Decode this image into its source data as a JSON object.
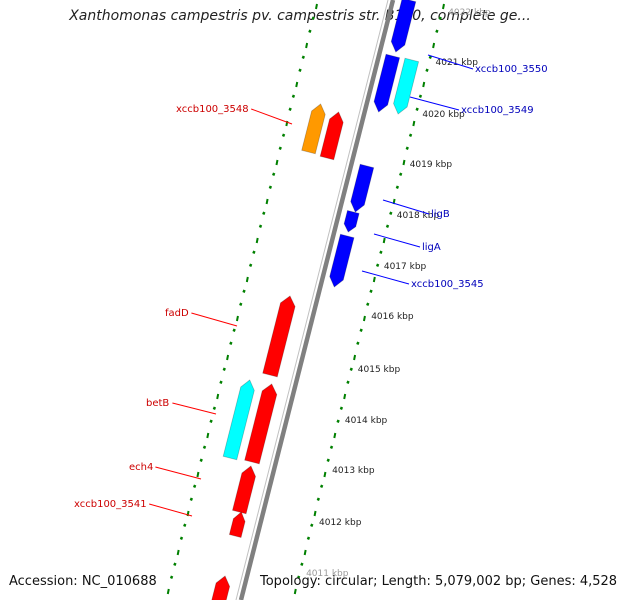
{
  "title": "Xanthomonas campestris pv. campestris str. B100, complete ge...",
  "footer": {
    "accession": "Accession: NC_010688",
    "stats": "Topology: circular; Length: 5,079,002 bp; Genes: 4,528"
  },
  "colors": {
    "backbone": "#808080",
    "forward": "#ff0000",
    "forward_alt": "#ff9900",
    "reverse": "#0000ff",
    "reverse_alt": "#00ffff",
    "ticks": "#008000",
    "forward_label": "#cc0000",
    "reverse_label": "#0000bb"
  },
  "scale": {
    "unit": "kbp",
    "labels": [
      "4022 kbp",
      "4021 kbp",
      "4020 kbp",
      "4019 kbp",
      "4018 kbp",
      "4017 kbp",
      "4016 kbp",
      "4015 kbp",
      "4014 kbp",
      "4013 kbp",
      "4012 kbp",
      "4011 kbp"
    ]
  },
  "forward_genes": [
    {
      "label": "xccb100_3548",
      "color": "forward"
    },
    {
      "label": "",
      "color": "forward_alt"
    },
    {
      "label": "fadD",
      "color": "forward"
    },
    {
      "label": "betB",
      "color": "reverse_alt"
    },
    {
      "label": "",
      "color": "forward"
    },
    {
      "label": "ech4",
      "color": "forward"
    },
    {
      "label": "xccb100_3541",
      "color": "forward"
    },
    {
      "label": "",
      "color": "forward"
    }
  ],
  "reverse_genes": [
    {
      "label": "",
      "color": "reverse"
    },
    {
      "label": "xccb100_3550",
      "color": "reverse_alt"
    },
    {
      "label": "xccb100_3549",
      "color": "reverse"
    },
    {
      "label": "",
      "color": "reverse"
    },
    {
      "label": "ligB",
      "color": "reverse"
    },
    {
      "label": "ligA",
      "color": "reverse"
    },
    {
      "label": "xccb100_3545",
      "color": "reverse"
    }
  ]
}
